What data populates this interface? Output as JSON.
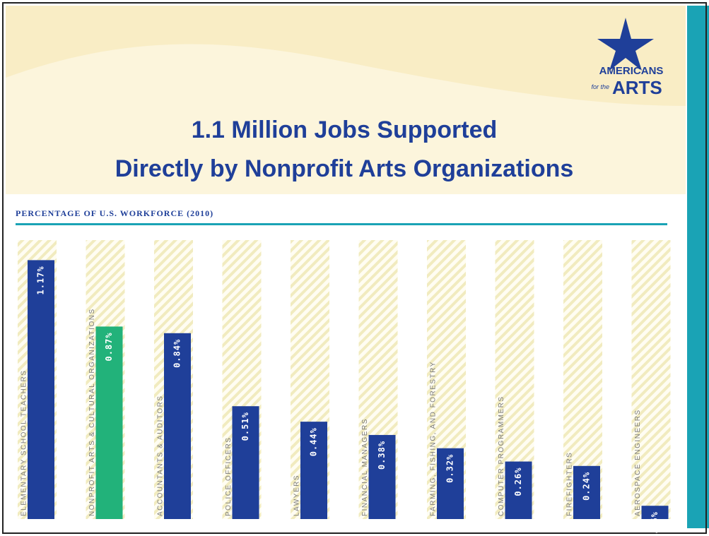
{
  "logo": {
    "line1": "AMERICANS",
    "line2": "for the",
    "line3": "ARTS"
  },
  "chart_data": {
    "type": "bar",
    "title": "1.1 Million Jobs Supported",
    "subtitle": "Directly by Nonprofit Arts Organizations",
    "y_label": "PERCENTAGE OF U.S. WORKFORCE (2010)",
    "categories": [
      "ELEMENTARY SCHOOL TEACHERS",
      "NONPROFIT ARTS & CULTURAL ORGANIZATIONS",
      "ACCOUNTANTS & AUDITORS",
      "POLICE OFFICERS",
      "LAWYERS",
      "FINANCIAL MANAGERS",
      "FARMING, FISHING, AND FORESTRY",
      "COMPUTER PROGRAMMERS",
      "FIREFIGHTERS",
      "AEROSPACE ENGINEERS"
    ],
    "values": [
      1.17,
      0.87,
      0.84,
      0.51,
      0.44,
      0.38,
      0.32,
      0.26,
      0.24,
      0.06
    ],
    "value_labels": [
      "1.17%",
      "0.87%",
      "0.84%",
      "0.51%",
      "0.44%",
      "0.38%",
      "0.32%",
      "0.26%",
      "0.24%",
      "0.06%"
    ],
    "colors": [
      "#1f3f99",
      "#22b27a",
      "#1f3f99",
      "#1f3f99",
      "#1f3f99",
      "#1f3f99",
      "#1f3f99",
      "#1f3f99",
      "#1f3f99",
      "#1f3f99"
    ],
    "ylim": [
      0,
      1.2
    ]
  }
}
